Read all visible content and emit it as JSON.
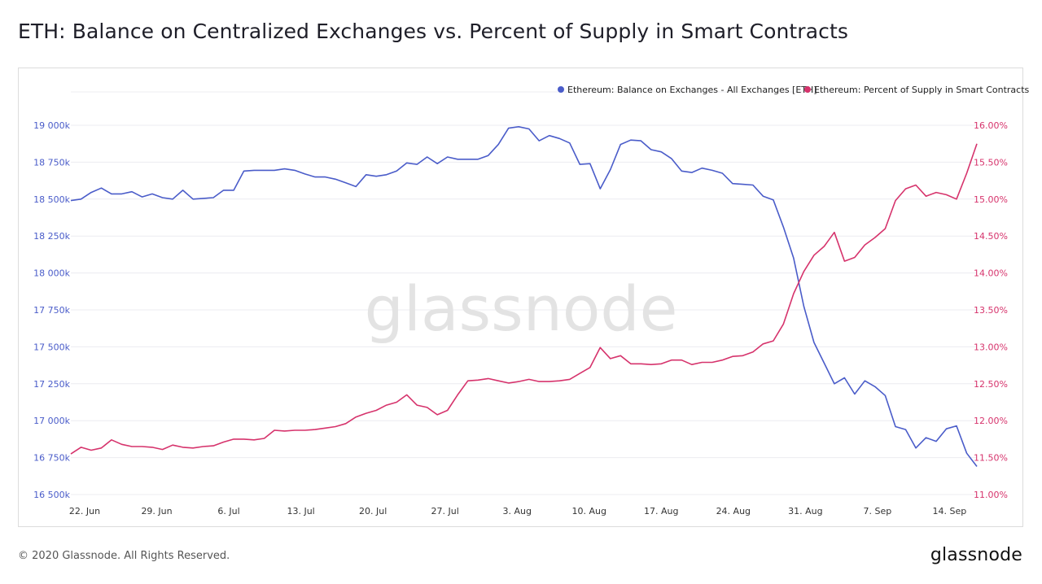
{
  "title": "ETH: Balance on Centralized Exchanges vs. Percent of Supply in Smart Contracts",
  "watermark": "glassnode",
  "footer": {
    "copyright": "© 2020 Glassnode. All Rights Reserved.",
    "logo": "glassnode"
  },
  "colors": {
    "balance": "#4a5cc9",
    "percent": "#d6336c",
    "grid": "#ececf0"
  },
  "chart_data": {
    "type": "line",
    "x_ticks": [
      "22. Jun",
      "29. Jun",
      "6. Jul",
      "13. Jul",
      "20. Jul",
      "27. Jul",
      "3. Aug",
      "10. Aug",
      "17. Aug",
      "24. Aug",
      "31. Aug",
      "7. Sep",
      "14. Sep"
    ],
    "x_range": [
      "2020-06-22",
      "2020-09-18"
    ],
    "y_left": {
      "range": [
        16500,
        19000
      ],
      "ticks": [
        19000,
        18750,
        18500,
        18250,
        18000,
        17750,
        17500,
        17250,
        17000,
        16750,
        16500
      ],
      "tick_labels": [
        "19 000k",
        "18 750k",
        "18 500k",
        "18 250k",
        "18 000k",
        "17 750k",
        "17 500k",
        "17 250k",
        "17 000k",
        "16 750k",
        "16 500k"
      ]
    },
    "y_right": {
      "range": [
        11.0,
        16.0
      ],
      "ticks": [
        16.0,
        15.5,
        15.0,
        14.5,
        14.0,
        13.5,
        13.0,
        12.5,
        12.0,
        11.5,
        11.0
      ],
      "tick_labels": [
        "16.00%",
        "15.50%",
        "15.00%",
        "14.50%",
        "14.00%",
        "13.50%",
        "13.00%",
        "12.50%",
        "12.00%",
        "11.50%",
        "11.00%"
      ]
    },
    "legend_position": "top-right",
    "grid": true,
    "series": [
      {
        "name": "Ethereum: Balance on Exchanges - All Exchanges [ETH]",
        "axis": "left",
        "unit": "k ETH",
        "values": [
          18490,
          18500,
          18545,
          18575,
          18535,
          18535,
          18550,
          18515,
          18535,
          18510,
          18500,
          18560,
          18500,
          18505,
          18510,
          18560,
          18560,
          18690,
          18695,
          18695,
          18695,
          18705,
          18695,
          18670,
          18650,
          18650,
          18635,
          18610,
          18585,
          18665,
          18655,
          18665,
          18690,
          18745,
          18735,
          18785,
          18740,
          18785,
          18770,
          18770,
          18770,
          18795,
          18870,
          18980,
          18990,
          18975,
          18895,
          18930,
          18910,
          18880,
          18735,
          18740,
          18570,
          18700,
          18870,
          18900,
          18895,
          18835,
          18820,
          18775,
          18690,
          18680,
          18710,
          18695,
          18675,
          18605,
          18600,
          18595,
          18520,
          18495,
          18310,
          18100,
          17775,
          17530,
          17390,
          17250,
          17290,
          17180,
          17270,
          17230,
          17170,
          16960,
          16940,
          16815,
          16885,
          16860,
          16945,
          16965,
          16780,
          16690
        ]
      },
      {
        "name": "Ethereum: Percent of Supply in Smart Contracts",
        "axis": "right",
        "unit": "%",
        "values": [
          11.55,
          11.64,
          11.6,
          11.63,
          11.74,
          11.68,
          11.65,
          11.65,
          11.64,
          11.61,
          11.67,
          11.64,
          11.63,
          11.65,
          11.66,
          11.71,
          11.75,
          11.75,
          11.74,
          11.76,
          11.87,
          11.86,
          11.87,
          11.87,
          11.88,
          11.9,
          11.92,
          11.96,
          12.05,
          12.1,
          12.14,
          12.21,
          12.25,
          12.35,
          12.21,
          12.18,
          12.08,
          12.14,
          12.35,
          12.54,
          12.55,
          12.57,
          12.54,
          12.51,
          12.53,
          12.56,
          12.53,
          12.53,
          12.54,
          12.56,
          12.64,
          12.72,
          12.99,
          12.84,
          12.88,
          12.77,
          12.77,
          12.76,
          12.77,
          12.82,
          12.82,
          12.76,
          12.79,
          12.79,
          12.82,
          12.87,
          12.88,
          12.93,
          13.04,
          13.08,
          13.31,
          13.72,
          14.02,
          14.24,
          14.36,
          14.55,
          14.16,
          14.21,
          14.38,
          14.48,
          14.6,
          14.98,
          15.14,
          15.19,
          15.04,
          15.09,
          15.06,
          15.0,
          15.35,
          15.75
        ]
      }
    ]
  }
}
